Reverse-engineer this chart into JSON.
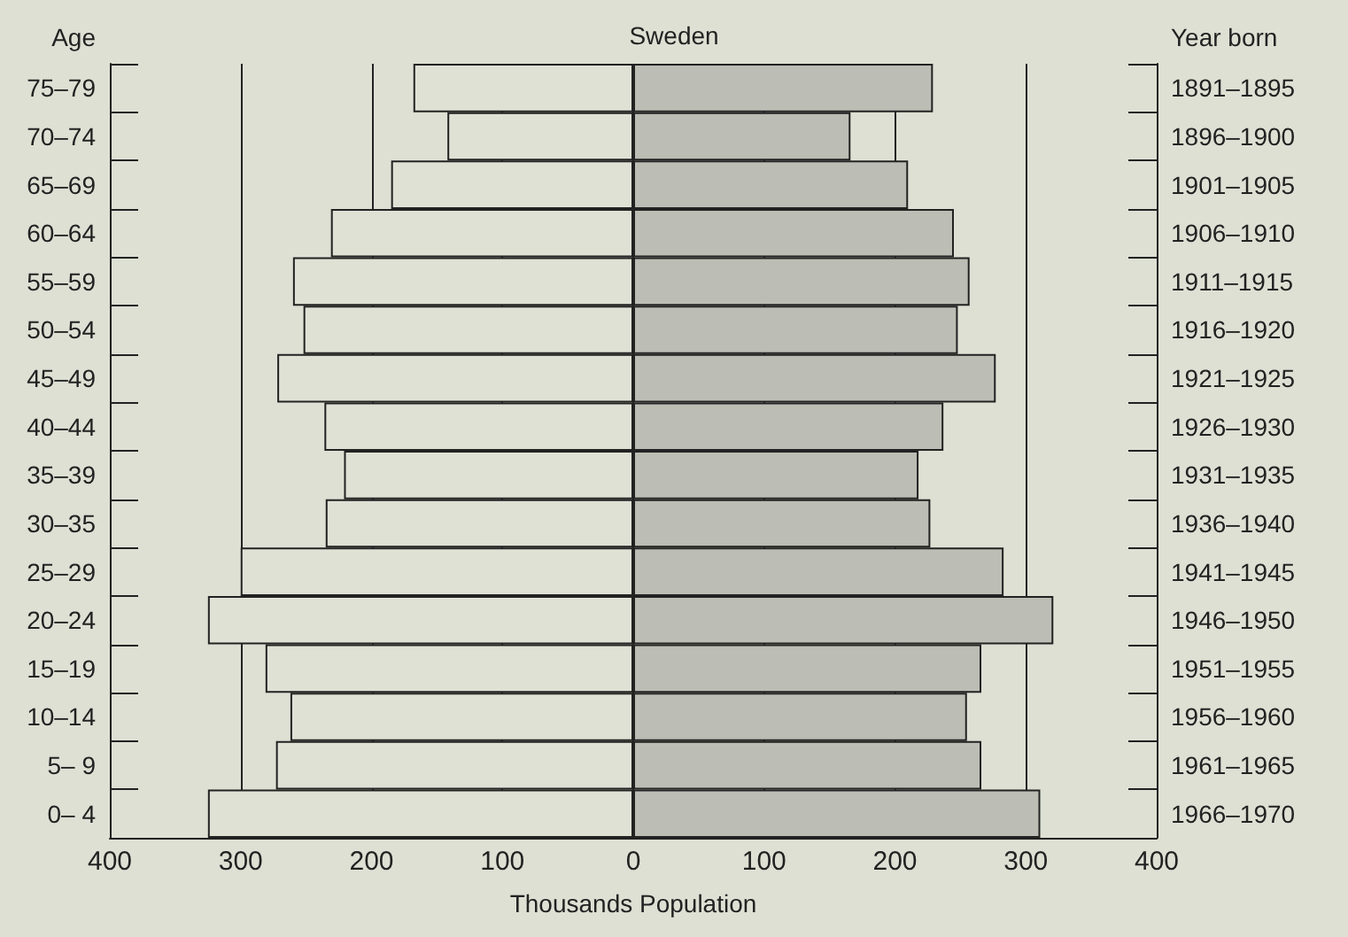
{
  "chart_data": {
    "type": "bar",
    "title": "Sweden",
    "xlabel": "Thousands Population",
    "ylabel": "Age",
    "y2label": "Year born",
    "orientation": "horizontal",
    "stacked": true,
    "grid": "x",
    "categories": [
      "75–79",
      "70–74",
      "65–69",
      "60–64",
      "55–59",
      "50–54",
      "45–49",
      "40–44",
      "35–39",
      "30–35",
      "25–29",
      "20–24",
      "15–19",
      "10–14",
      "5– 9",
      "0– 4"
    ],
    "y2_categories": [
      "1891–1895",
      "1896–1900",
      "1901–1905",
      "1906–1910",
      "1911–1915",
      "1916–1920",
      "1921–1925",
      "1926–1930",
      "1931–1935",
      "1936–1940",
      "1941–1945",
      "1946–1950",
      "1951–1955",
      "1956–1960",
      "1961–1965",
      "1966–1970"
    ],
    "series": [
      {
        "color": "#dfe1d5",
        "values": [
          -168,
          -142,
          -185,
          -231,
          -260,
          -252,
          -272,
          -236,
          -221,
          -235,
          -300,
          -325,
          -281,
          -262,
          -273,
          -325
        ]
      },
      {
        "color": "#bcbdb4",
        "values": [
          229,
          166,
          210,
          245,
          257,
          248,
          277,
          237,
          218,
          227,
          283,
          321,
          266,
          255,
          266,
          311
        ]
      }
    ],
    "xlim": [
      -400,
      400
    ],
    "xticks": [
      {
        "value": -400,
        "label": "400"
      },
      {
        "value": -300,
        "label": "300"
      },
      {
        "value": -200,
        "label": "200"
      },
      {
        "value": -100,
        "label": "100"
      },
      0,
      100,
      200,
      300,
      400
    ]
  }
}
